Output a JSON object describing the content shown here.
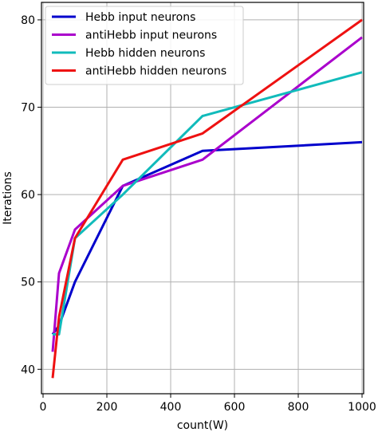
{
  "chart_data": {
    "type": "line",
    "title": "",
    "xlabel": "count(W)",
    "ylabel": "Iterations",
    "xlim": [
      -5,
      1005
    ],
    "ylim": [
      37.2,
      82
    ],
    "xticks": [
      0,
      200,
      400,
      600,
      800,
      1000
    ],
    "yticks": [
      40,
      50,
      60,
      70,
      80
    ],
    "grid": true,
    "legend_position": "top-left",
    "series": [
      {
        "name": "Hebb input neurons",
        "color": "#0000cc",
        "x": [
          30,
          50,
          100,
          250,
          500,
          1000
        ],
        "y": [
          44,
          45,
          50,
          61,
          65,
          66
        ]
      },
      {
        "name": "antiHebb input neurons",
        "color": "#aa00cc",
        "x": [
          30,
          50,
          100,
          250,
          500,
          1000
        ],
        "y": [
          42,
          51,
          56,
          61,
          64,
          78
        ]
      },
      {
        "name": "Hebb hidden neurons",
        "color": "#11bbbb",
        "x": [
          30,
          50,
          100,
          250,
          500,
          1000
        ],
        "y": [
          44,
          44,
          55,
          60,
          69,
          74
        ]
      },
      {
        "name": "antiHebb hidden neurons",
        "color": "#ee1111",
        "x": [
          30,
          50,
          100,
          250,
          500,
          1000
        ],
        "y": [
          39,
          46,
          55,
          64,
          67,
          80
        ]
      }
    ]
  }
}
